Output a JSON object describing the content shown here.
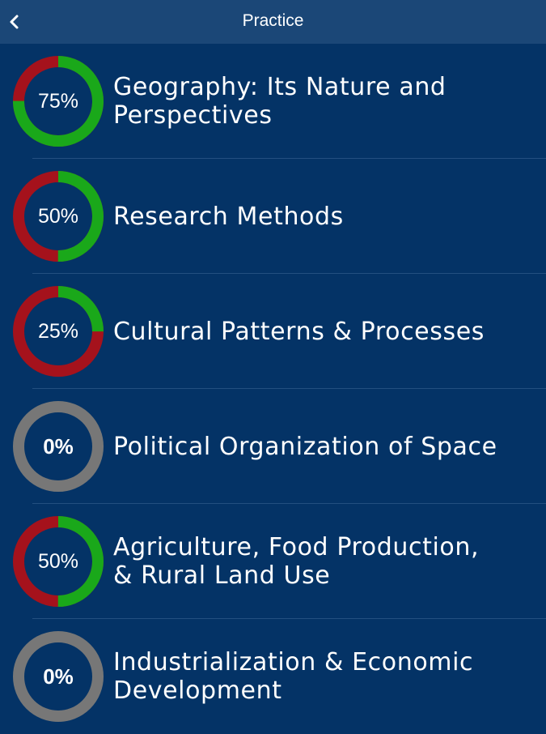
{
  "header": {
    "title": "Practice",
    "back_icon": "chevron-left-icon"
  },
  "colors": {
    "background": "#043366",
    "header": "#1b4777",
    "progress_complete": "#1aa81a",
    "progress_remaining": "#a5121c",
    "progress_none": "#777777"
  },
  "topics": [
    {
      "title": "Geography: Its Nature and\nPerspectives",
      "progress": 75,
      "progress_label": "75%"
    },
    {
      "title": "Research Methods",
      "progress": 50,
      "progress_label": "50%"
    },
    {
      "title": "Cultural Patterns & Processes",
      "progress": 25,
      "progress_label": "25%"
    },
    {
      "title": "Political Organization of Space",
      "progress": 0,
      "progress_label": "0%"
    },
    {
      "title": "Agriculture, Food Production,\n& Rural Land Use",
      "progress": 50,
      "progress_label": "50%"
    },
    {
      "title": "Industrialization & Economic\nDevelopment",
      "progress": 0,
      "progress_label": "0%"
    }
  ]
}
